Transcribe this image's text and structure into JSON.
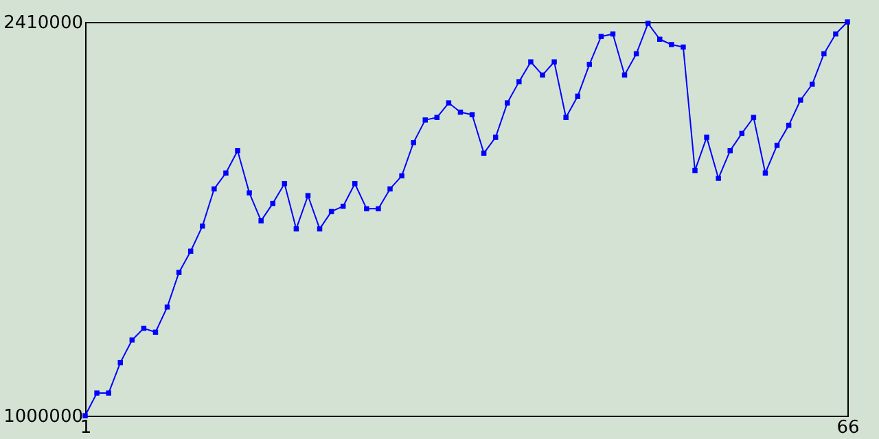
{
  "chart_data": {
    "type": "line",
    "x": [
      1,
      2,
      3,
      4,
      5,
      6,
      7,
      8,
      9,
      10,
      11,
      12,
      13,
      14,
      15,
      16,
      17,
      18,
      19,
      20,
      21,
      22,
      23,
      24,
      25,
      26,
      27,
      28,
      29,
      30,
      31,
      32,
      33,
      34,
      35,
      36,
      37,
      38,
      39,
      40,
      41,
      42,
      43,
      44,
      45,
      46,
      47,
      48,
      49,
      50,
      51,
      52,
      53,
      54,
      55,
      56,
      57,
      58,
      59,
      60,
      61,
      62,
      63,
      64,
      65,
      66
    ],
    "series": [
      {
        "color": "#0000ff",
        "values": [
          1000000,
          1081000,
          1081000,
          1190000,
          1271000,
          1313000,
          1299000,
          1389000,
          1513000,
          1589000,
          1679000,
          1812000,
          1869000,
          1949000,
          1798000,
          1698000,
          1760000,
          1831000,
          1669000,
          1788000,
          1669000,
          1731000,
          1750000,
          1831000,
          1741000,
          1741000,
          1812000,
          1859000,
          1978000,
          2059000,
          2068000,
          2120000,
          2087000,
          2078000,
          1940000,
          1997000,
          2120000,
          2196000,
          2267000,
          2220000,
          2267000,
          2068000,
          2144000,
          2258000,
          2358000,
          2367000,
          2220000,
          2296000,
          2405000,
          2348000,
          2329000,
          2320000,
          1878000,
          1997000,
          1850000,
          1949000,
          2011000,
          2068000,
          1869000,
          1968000,
          2040000,
          2130000,
          2187000,
          2296000,
          2367000,
          2410000
        ]
      }
    ],
    "xlim": [
      1,
      66
    ],
    "xticks": [
      1,
      66
    ],
    "ylim": [
      1000000,
      2410000
    ],
    "yticks": [
      1000000,
      2410000
    ],
    "grid": false,
    "marker": "square",
    "line_style": "solid"
  }
}
